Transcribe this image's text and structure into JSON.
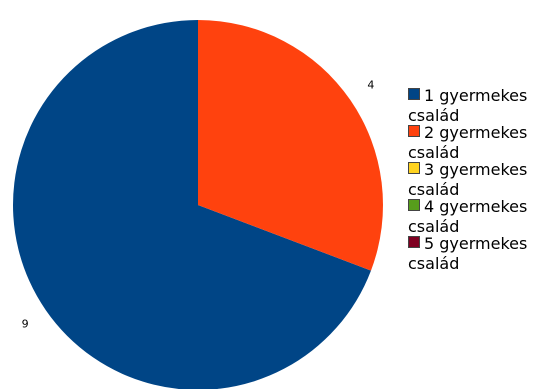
{
  "chart_data": {
    "type": "pie",
    "categories": [
      "1 gyermekes család",
      "2 gyermekes család",
      "3 gyermekes család",
      "4 gyermekes család",
      "5 gyermekes család"
    ],
    "values": [
      9,
      4,
      0,
      0,
      0
    ],
    "colors": [
      "#004586",
      "#ff420e",
      "#ffd320",
      "#579d1c",
      "#7e0021"
    ],
    "legend": "right"
  }
}
